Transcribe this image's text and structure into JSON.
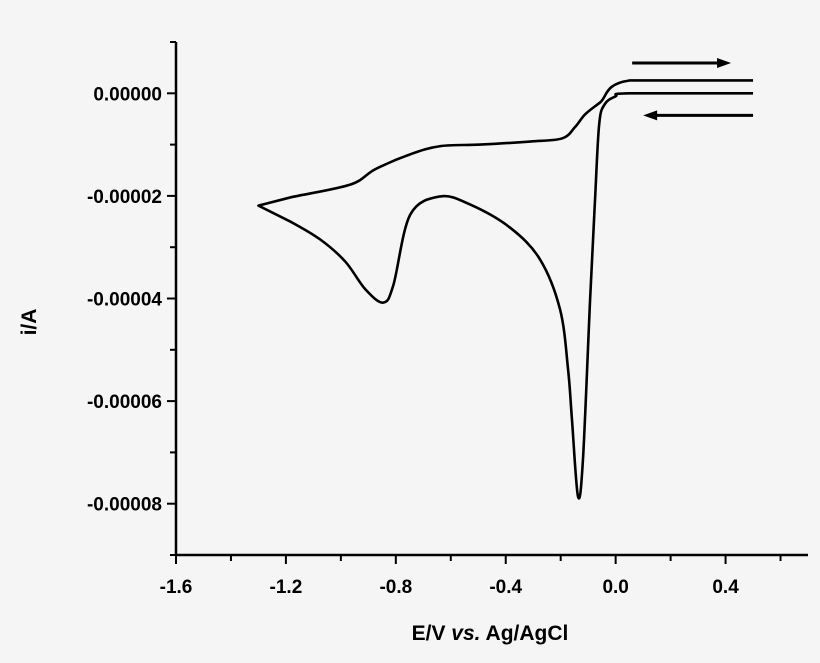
{
  "chart_data": {
    "type": "line",
    "title": "",
    "xlabel": "E/V vs. Ag/AgCl",
    "xlabel_parts": [
      "E/V ",
      "vs.",
      " Ag/AgCl"
    ],
    "ylabel": "i/A",
    "xlim": [
      -1.6,
      0.7
    ],
    "ylim": [
      -9e-05,
      1e-05
    ],
    "x_ticks": [
      -1.6,
      -1.2,
      -0.8,
      -0.4,
      0.0,
      0.4
    ],
    "x_tick_labels": [
      "-1.6",
      "-1.2",
      "-0.8",
      "-0.4",
      "0.0",
      "0.4"
    ],
    "x_minor_step": 0.2,
    "y_ticks": [
      0,
      -2e-05,
      -4e-05,
      -6e-05,
      -8e-05
    ],
    "y_tick_labels": [
      "0.00000",
      "-0.00002",
      "-0.00004",
      "-0.00006",
      "-0.00008"
    ],
    "y_minor_step": 1e-05,
    "grid": false,
    "legend": "none",
    "line_color": "#000000",
    "series": [
      {
        "x": [
          0.5,
          0.05,
          0.0,
          -0.04,
          -0.06,
          -0.075,
          -0.093,
          -0.119,
          -0.137,
          -0.159,
          -0.173,
          -0.202,
          -0.275,
          -0.384,
          -0.529,
          -0.638,
          -0.748,
          -0.809,
          -0.846,
          -0.911,
          -0.984,
          -1.075,
          -1.184,
          -1.3,
          -1.184,
          -0.966,
          -0.875,
          -0.748,
          -0.638,
          -0.493,
          -0.311,
          -0.195,
          -0.148,
          -0.111,
          -0.057,
          0.05,
          0.5
        ],
        "y": [
          0,
          0,
          -5.9e-07,
          -2.15e-06,
          -6.05e-06,
          -2.07e-05,
          -4.02e-05,
          -7.14e-05,
          -7.86e-05,
          -6.36e-05,
          -5.39e-05,
          -4.22e-05,
          -3.24e-05,
          -2.62e-05,
          -2.17e-05,
          -2.01e-05,
          -2.37e-05,
          -3.74e-05,
          -4.08e-05,
          -3.82e-05,
          -3.28e-05,
          -2.85e-05,
          -2.5e-05,
          -2.19e-05,
          -2.03e-05,
          -1.78e-05,
          -1.48e-05,
          -1.19e-05,
          -1.03e-05,
          -1e-05,
          -9.4e-06,
          -8.8e-06,
          -6.6e-06,
          -4.1e-06,
          -1.8e-06,
          2.5e-06,
          2.5e-06
        ]
      }
    ],
    "annotations": [
      {
        "type": "arrow",
        "direction": "right",
        "from": [
          0.06,
          5.9e-06
        ],
        "to": [
          0.42,
          5.9e-06
        ]
      },
      {
        "type": "arrow",
        "direction": "left",
        "from": [
          0.5,
          -4.3e-06
        ],
        "to": [
          0.1,
          -4.3e-06
        ]
      }
    ]
  }
}
